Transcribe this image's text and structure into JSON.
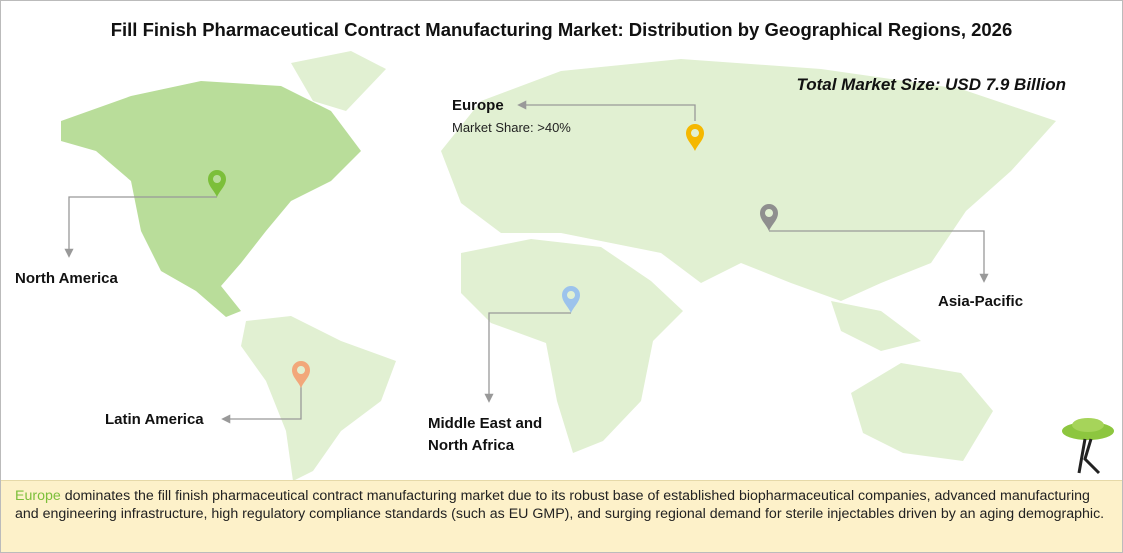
{
  "header": {
    "title": "Fill Finish Pharmaceutical Contract Manufacturing Market: Distribution by Geographical Regions, 2026",
    "total_market_size": "Total Market Size: USD 7.9 Billion"
  },
  "regions": [
    {
      "name": "Europe",
      "detail": "Market Share: >40%"
    },
    {
      "name": "North America"
    },
    {
      "name": "Asia-Pacific"
    },
    {
      "name": "Latin America"
    },
    {
      "name": "Middle East and North Africa"
    }
  ],
  "footer": {
    "highlight": "Europe",
    "text": "dominates the fill finish pharmaceutical contract manufacturing market due to its robust base of established biopharmaceutical companies, advanced manufacturing and engineering infrastructure, high regulatory compliance standards (such as EU GMP), and surging regional demand for sterile injectables driven by an aging demographic."
  }
}
